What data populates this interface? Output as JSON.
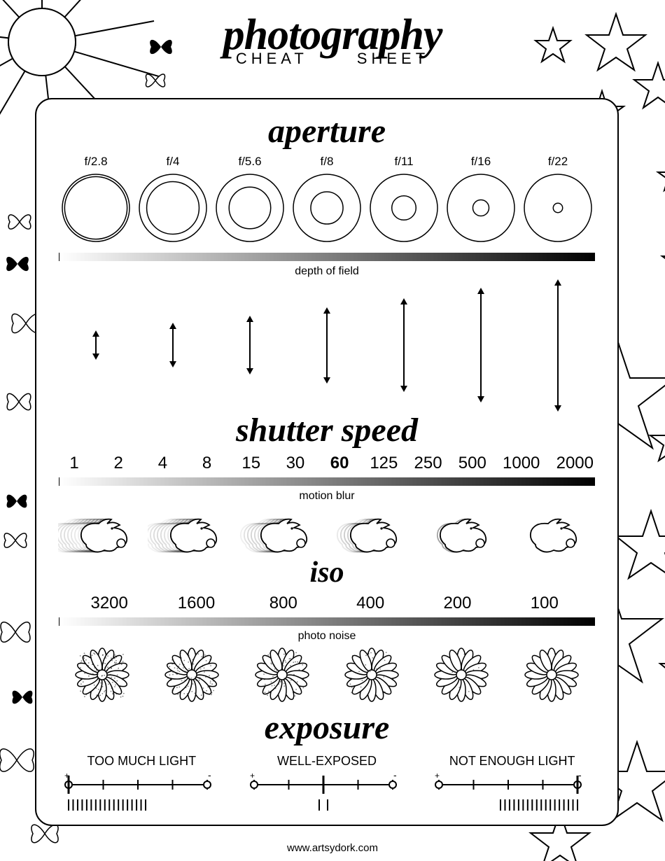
{
  "title": {
    "main": "photography",
    "sub_left": "CHEAT",
    "sub_right": "SHEET"
  },
  "footer_url": "www.artsydork.com",
  "colors": {
    "fg": "#000000",
    "bg": "#ffffff"
  },
  "aperture": {
    "heading": "aperture",
    "mid_label": "depth of field",
    "stops": [
      {
        "label": "f/2.8",
        "inner_ratio": 0.93
      },
      {
        "label": "f/4",
        "inner_ratio": 0.78
      },
      {
        "label": "f/5.6",
        "inner_ratio": 0.62
      },
      {
        "label": "f/8",
        "inner_ratio": 0.48
      },
      {
        "label": "f/11",
        "inner_ratio": 0.36
      },
      {
        "label": "f/16",
        "inner_ratio": 0.24
      },
      {
        "label": "f/22",
        "inner_ratio": 0.14
      }
    ],
    "dof_arrow_heights": [
      28,
      50,
      70,
      95,
      120,
      150,
      175
    ]
  },
  "shutter": {
    "heading": "shutter speed",
    "mid_label": "motion blur",
    "values": [
      "1",
      "2",
      "4",
      "8",
      "15",
      "30",
      "60",
      "125",
      "250",
      "500",
      "1000",
      "2000"
    ],
    "bold_index": 6,
    "blur_levels": [
      1.0,
      0.8,
      0.6,
      0.4,
      0.1,
      0.0
    ]
  },
  "iso": {
    "heading": "iso",
    "mid_label": "photo noise",
    "values": [
      "3200",
      "1600",
      "800",
      "400",
      "200",
      "100"
    ],
    "noise_levels": [
      0.85,
      0.7,
      0.45,
      0.2,
      0.05,
      0.0
    ]
  },
  "exposure": {
    "heading": "exposure",
    "states": [
      {
        "label": "TOO MUCH LIGHT",
        "pointer_pos": 0.0,
        "bar_pos": "left"
      },
      {
        "label": "WELL-EXPOSED",
        "pointer_pos": 0.5,
        "bar_pos": "center"
      },
      {
        "label": "NOT ENOUGH LIGHT",
        "pointer_pos": 1.0,
        "bar_pos": "right"
      }
    ]
  }
}
